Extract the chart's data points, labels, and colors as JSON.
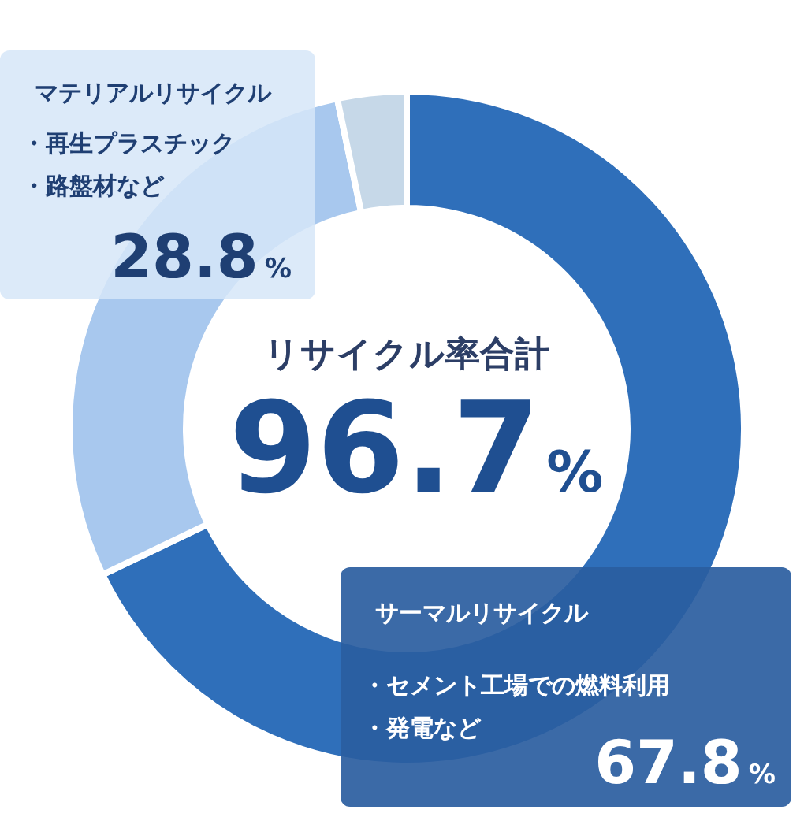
{
  "chart_data": {
    "type": "donut",
    "title": "リサイクル率合計",
    "categories": [
      "サーマルリサイクル",
      "マテリアルリサイクル",
      null
    ],
    "values": [
      67.8,
      28.8,
      3.3
    ],
    "colors": [
      "#2f6fba",
      "#a8c8ee",
      "#c6d8e8"
    ],
    "value_labels": [
      "67.8%",
      "28.8%",
      null
    ],
    "annotations": [
      "96.7%",
      "・再生プラスチック",
      "・路盤材など",
      "・セメント工場での燃料利用",
      "・発電など"
    ]
  }
}
